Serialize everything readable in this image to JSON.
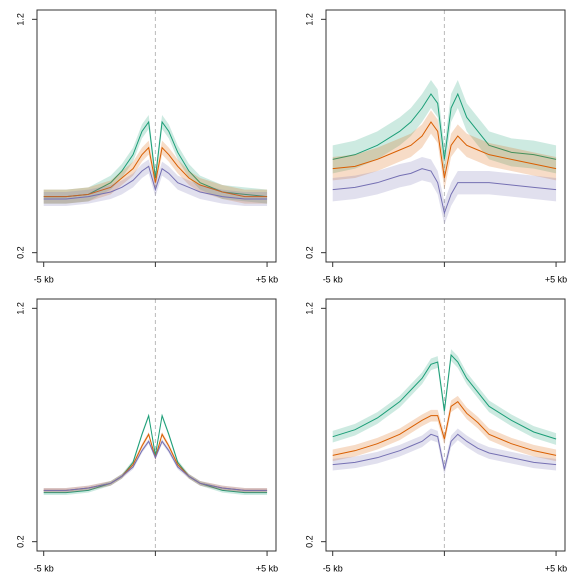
{
  "chart_data": [
    {
      "type": "line",
      "x": [
        -5,
        -4,
        -3,
        -2,
        -1.5,
        -1,
        -0.6,
        -0.3,
        0,
        0.3,
        0.6,
        1,
        1.5,
        2,
        3,
        4,
        5
      ],
      "xlim": [
        -5.3,
        5.4
      ],
      "ylim": [
        0.16,
        1.24
      ],
      "yticks": [
        0.2,
        1.2
      ],
      "xticks": [
        {
          "value": -5,
          "label": "-5 kb"
        },
        {
          "value": 0,
          "label": null
        },
        {
          "value": 5,
          "label": "+5 kb"
        }
      ],
      "vline": 0,
      "series": [
        {
          "color": "#1b9e77",
          "values": [
            0.44,
            0.44,
            0.45,
            0.5,
            0.55,
            0.62,
            0.72,
            0.76,
            0.52,
            0.76,
            0.72,
            0.63,
            0.55,
            0.5,
            0.46,
            0.45,
            0.44
          ],
          "errors": [
            0.03,
            0.03,
            0.03,
            0.03,
            0.03,
            0.03,
            0.03,
            0.03,
            0.03,
            0.03,
            0.03,
            0.03,
            0.03,
            0.03,
            0.03,
            0.03,
            0.03
          ]
        },
        {
          "color": "#d95f02",
          "values": [
            0.44,
            0.44,
            0.45,
            0.48,
            0.52,
            0.56,
            0.62,
            0.65,
            0.5,
            0.65,
            0.62,
            0.57,
            0.52,
            0.49,
            0.46,
            0.44,
            0.44
          ],
          "errors": [
            0.03,
            0.03,
            0.03,
            0.03,
            0.03,
            0.03,
            0.03,
            0.03,
            0.03,
            0.03,
            0.03,
            0.03,
            0.03,
            0.03,
            0.03,
            0.03,
            0.03
          ]
        },
        {
          "color": "#7570b3",
          "values": [
            0.43,
            0.43,
            0.44,
            0.46,
            0.48,
            0.51,
            0.55,
            0.57,
            0.47,
            0.56,
            0.54,
            0.5,
            0.48,
            0.46,
            0.44,
            0.43,
            0.43
          ],
          "errors": [
            0.03,
            0.03,
            0.03,
            0.03,
            0.03,
            0.03,
            0.03,
            0.03,
            0.03,
            0.03,
            0.03,
            0.03,
            0.03,
            0.03,
            0.03,
            0.03,
            0.03
          ]
        }
      ]
    },
    {
      "type": "line",
      "x": [
        -5,
        -4,
        -3,
        -2,
        -1.5,
        -1,
        -0.6,
        -0.3,
        0,
        0.3,
        0.6,
        1,
        1.5,
        2,
        3,
        4,
        5
      ],
      "xlim": [
        -5.3,
        5.4
      ],
      "ylim": [
        0.16,
        1.24
      ],
      "yticks": [
        0.2,
        1.2
      ],
      "xticks": [
        {
          "value": -5,
          "label": "-5 kb"
        },
        {
          "value": 0,
          "label": null
        },
        {
          "value": 5,
          "label": "+5 kb"
        }
      ],
      "vline": 0,
      "series": [
        {
          "color": "#1b9e77",
          "values": [
            0.6,
            0.62,
            0.66,
            0.72,
            0.76,
            0.82,
            0.88,
            0.84,
            0.6,
            0.82,
            0.88,
            0.78,
            0.72,
            0.66,
            0.63,
            0.62,
            0.6
          ],
          "errors": [
            0.06,
            0.06,
            0.06,
            0.06,
            0.06,
            0.06,
            0.06,
            0.06,
            0.06,
            0.06,
            0.06,
            0.06,
            0.06,
            0.06,
            0.06,
            0.06,
            0.06
          ]
        },
        {
          "color": "#d95f02",
          "values": [
            0.56,
            0.57,
            0.6,
            0.64,
            0.66,
            0.7,
            0.76,
            0.72,
            0.52,
            0.66,
            0.7,
            0.66,
            0.64,
            0.62,
            0.6,
            0.58,
            0.56
          ],
          "errors": [
            0.05,
            0.05,
            0.05,
            0.05,
            0.05,
            0.05,
            0.05,
            0.05,
            0.05,
            0.05,
            0.05,
            0.05,
            0.05,
            0.05,
            0.05,
            0.05,
            0.05
          ]
        },
        {
          "color": "#7570b3",
          "values": [
            0.47,
            0.48,
            0.5,
            0.53,
            0.54,
            0.56,
            0.55,
            0.5,
            0.37,
            0.45,
            0.5,
            0.5,
            0.5,
            0.5,
            0.49,
            0.48,
            0.47
          ],
          "errors": [
            0.05,
            0.05,
            0.05,
            0.05,
            0.05,
            0.05,
            0.05,
            0.05,
            0.05,
            0.05,
            0.05,
            0.05,
            0.05,
            0.05,
            0.05,
            0.05,
            0.05
          ]
        }
      ]
    },
    {
      "type": "line",
      "x": [
        -5,
        -4,
        -3,
        -2,
        -1.5,
        -1,
        -0.6,
        -0.3,
        0,
        0.3,
        0.6,
        1,
        1.5,
        2,
        3,
        4,
        5
      ],
      "xlim": [
        -5.3,
        5.4
      ],
      "ylim": [
        0.16,
        1.24
      ],
      "yticks": [
        0.2,
        1.2
      ],
      "xticks": [
        {
          "value": -5,
          "label": "-5 kb"
        },
        {
          "value": 0,
          "label": null
        },
        {
          "value": 5,
          "label": "+5 kb"
        }
      ],
      "vline": 0,
      "series": [
        {
          "color": "#1b9e77",
          "values": [
            0.41,
            0.41,
            0.42,
            0.45,
            0.48,
            0.54,
            0.66,
            0.74,
            0.57,
            0.74,
            0.66,
            0.54,
            0.48,
            0.45,
            0.42,
            0.41,
            0.41
          ],
          "errors": [
            0.01,
            0.01,
            0.01,
            0.01,
            0.01,
            0.01,
            0.01,
            0.01,
            0.01,
            0.01,
            0.01,
            0.01,
            0.01,
            0.01,
            0.01,
            0.01,
            0.01
          ]
        },
        {
          "color": "#d95f02",
          "values": [
            0.42,
            0.42,
            0.43,
            0.45,
            0.48,
            0.53,
            0.61,
            0.66,
            0.56,
            0.66,
            0.61,
            0.53,
            0.48,
            0.45,
            0.43,
            0.42,
            0.42
          ],
          "errors": [
            0.01,
            0.01,
            0.01,
            0.01,
            0.01,
            0.01,
            0.01,
            0.01,
            0.01,
            0.01,
            0.01,
            0.01,
            0.01,
            0.01,
            0.01,
            0.01,
            0.01
          ]
        },
        {
          "color": "#7570b3",
          "values": [
            0.42,
            0.42,
            0.43,
            0.45,
            0.48,
            0.52,
            0.59,
            0.63,
            0.56,
            0.63,
            0.59,
            0.52,
            0.48,
            0.45,
            0.43,
            0.42,
            0.42
          ],
          "errors": [
            0.01,
            0.01,
            0.01,
            0.01,
            0.01,
            0.01,
            0.01,
            0.01,
            0.01,
            0.01,
            0.01,
            0.01,
            0.01,
            0.01,
            0.01,
            0.01,
            0.01
          ]
        }
      ]
    },
    {
      "type": "line",
      "x": [
        -5,
        -4,
        -3,
        -2,
        -1.5,
        -1,
        -0.6,
        -0.3,
        0,
        0.3,
        0.6,
        1,
        1.5,
        2,
        3,
        4,
        5
      ],
      "xlim": [
        -5.3,
        5.4
      ],
      "ylim": [
        0.16,
        1.24
      ],
      "yticks": [
        0.2,
        1.2
      ],
      "xticks": [
        {
          "value": -5,
          "label": "-5 kb"
        },
        {
          "value": 0,
          "label": null
        },
        {
          "value": 5,
          "label": "+5 kb"
        }
      ],
      "vline": 0,
      "series": [
        {
          "color": "#1b9e77",
          "values": [
            0.65,
            0.68,
            0.73,
            0.8,
            0.85,
            0.9,
            0.96,
            0.97,
            0.76,
            1.0,
            0.97,
            0.9,
            0.84,
            0.78,
            0.72,
            0.67,
            0.64
          ],
          "errors": [
            0.025,
            0.025,
            0.025,
            0.025,
            0.025,
            0.025,
            0.025,
            0.025,
            0.025,
            0.025,
            0.025,
            0.025,
            0.025,
            0.025,
            0.025,
            0.025,
            0.025
          ]
        },
        {
          "color": "#d95f02",
          "values": [
            0.57,
            0.59,
            0.62,
            0.66,
            0.69,
            0.72,
            0.74,
            0.74,
            0.64,
            0.78,
            0.8,
            0.75,
            0.71,
            0.66,
            0.62,
            0.59,
            0.57
          ],
          "errors": [
            0.025,
            0.025,
            0.025,
            0.025,
            0.025,
            0.025,
            0.025,
            0.025,
            0.025,
            0.025,
            0.025,
            0.025,
            0.025,
            0.025,
            0.025,
            0.025,
            0.025
          ]
        },
        {
          "color": "#7570b3",
          "values": [
            0.53,
            0.54,
            0.56,
            0.59,
            0.61,
            0.63,
            0.66,
            0.65,
            0.51,
            0.63,
            0.66,
            0.63,
            0.6,
            0.58,
            0.56,
            0.54,
            0.53
          ],
          "errors": [
            0.025,
            0.025,
            0.025,
            0.025,
            0.025,
            0.025,
            0.025,
            0.025,
            0.025,
            0.025,
            0.025,
            0.025,
            0.025,
            0.025,
            0.025,
            0.025,
            0.025
          ]
        }
      ]
    }
  ]
}
